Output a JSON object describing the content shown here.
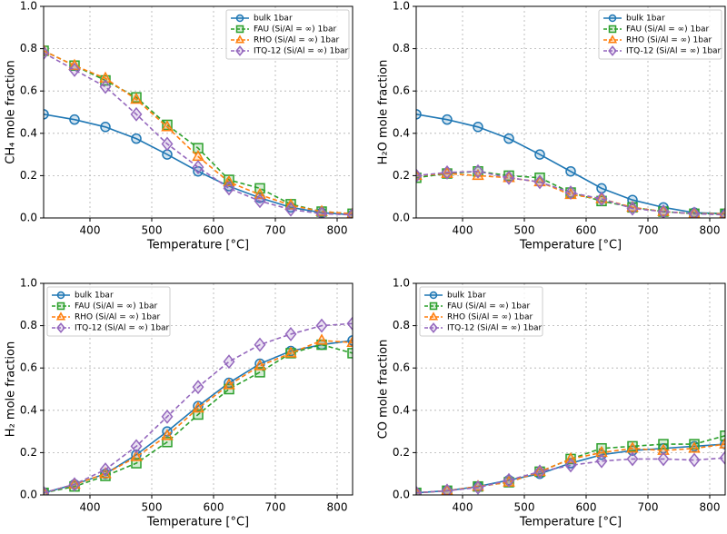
{
  "chart_data": [
    {
      "type": "line",
      "ylabel": "CH₄ mole fraction",
      "xlabel": "Temperature [°C]",
      "x": [
        325,
        375,
        425,
        475,
        525,
        575,
        625,
        675,
        725,
        775,
        825
      ],
      "xlim": [
        325,
        825
      ],
      "xticks": [
        400,
        500,
        600,
        700,
        800
      ],
      "ylim": [
        0,
        1
      ],
      "yticks": [
        {
          "value": 0,
          "label": "0.0"
        },
        0.2,
        0.4,
        0.6,
        0.8,
        {
          "value": 1,
          "label": "1.0"
        }
      ],
      "grid": true,
      "legend_loc": "upper right",
      "series": [
        {
          "name": "bulk 1bar",
          "color": "#1f77b4",
          "marker": "circle",
          "linestyle": "solid",
          "values": [
            0.49,
            0.465,
            0.43,
            0.375,
            0.3,
            0.22,
            0.15,
            0.095,
            0.05,
            0.025,
            0.015
          ]
        },
        {
          "name": "FAU (Si/Al = ∞) 1bar",
          "color": "#2ca02c",
          "marker": "square",
          "linestyle": "dashed",
          "values": [
            0.79,
            0.72,
            0.65,
            0.57,
            0.44,
            0.33,
            0.18,
            0.14,
            0.065,
            0.03,
            0.02
          ]
        },
        {
          "name": "RHO (Si/Al = ∞) 1bar",
          "color": "#ff7f0e",
          "marker": "triangle",
          "linestyle": "dashed",
          "values": [
            0.79,
            0.72,
            0.66,
            0.56,
            0.43,
            0.29,
            0.17,
            0.11,
            0.06,
            0.03,
            0.02
          ]
        },
        {
          "name": "ITQ-12 (Si/Al = ∞) 1bar",
          "color": "#9467bd",
          "marker": "diamond",
          "linestyle": "dashed",
          "values": [
            0.78,
            0.7,
            0.62,
            0.49,
            0.35,
            0.24,
            0.14,
            0.08,
            0.04,
            0.02,
            0.015
          ]
        }
      ]
    },
    {
      "type": "line",
      "ylabel": "H₂O mole fraction",
      "xlabel": "Temperature [°C]",
      "x": [
        325,
        375,
        425,
        475,
        525,
        575,
        625,
        675,
        725,
        775,
        825
      ],
      "xlim": [
        325,
        825
      ],
      "xticks": [
        400,
        500,
        600,
        700,
        800
      ],
      "ylim": [
        0,
        1
      ],
      "yticks": [
        {
          "value": 0,
          "label": "0.0"
        },
        0.2,
        0.4,
        0.6,
        0.8,
        {
          "value": 1,
          "label": "1.0"
        }
      ],
      "grid": true,
      "legend_loc": "upper right",
      "series": [
        {
          "name": "bulk 1bar",
          "color": "#1f77b4",
          "marker": "circle",
          "linestyle": "solid",
          "values": [
            0.49,
            0.465,
            0.43,
            0.375,
            0.3,
            0.22,
            0.14,
            0.085,
            0.05,
            0.025,
            0.02
          ]
        },
        {
          "name": "FAU (Si/Al = ∞) 1bar",
          "color": "#2ca02c",
          "marker": "square",
          "linestyle": "dashed",
          "values": [
            0.19,
            0.21,
            0.22,
            0.2,
            0.19,
            0.12,
            0.08,
            0.05,
            0.03,
            0.02,
            0.02
          ]
        },
        {
          "name": "RHO (Si/Al = ∞) 1bar",
          "color": "#ff7f0e",
          "marker": "triangle",
          "linestyle": "dashed",
          "values": [
            0.2,
            0.21,
            0.2,
            0.19,
            0.17,
            0.11,
            0.09,
            0.05,
            0.03,
            0.02,
            0.02
          ]
        },
        {
          "name": "ITQ-12 (Si/Al = ∞) 1bar",
          "color": "#9467bd",
          "marker": "diamond",
          "linestyle": "dashed",
          "values": [
            0.2,
            0.215,
            0.22,
            0.19,
            0.17,
            0.12,
            0.09,
            0.045,
            0.03,
            0.02,
            0.015
          ]
        }
      ]
    },
    {
      "type": "line",
      "ylabel": "H₂ mole fraction",
      "xlabel": "Temperature [°C]",
      "x": [
        325,
        375,
        425,
        475,
        525,
        575,
        625,
        675,
        725,
        775,
        825
      ],
      "xlim": [
        325,
        825
      ],
      "xticks": [
        400,
        500,
        600,
        700,
        800
      ],
      "ylim": [
        0,
        1
      ],
      "yticks": [
        {
          "value": 0,
          "label": "0.0"
        },
        0.2,
        0.4,
        0.6,
        0.8,
        {
          "value": 1,
          "label": "1.0"
        }
      ],
      "grid": true,
      "legend_loc": "upper left",
      "series": [
        {
          "name": "bulk 1bar",
          "color": "#1f77b4",
          "marker": "circle",
          "linestyle": "solid",
          "values": [
            0.01,
            0.05,
            0.1,
            0.19,
            0.3,
            0.42,
            0.53,
            0.62,
            0.68,
            0.71,
            0.73
          ]
        },
        {
          "name": "FAU (Si/Al = ∞) 1bar",
          "color": "#2ca02c",
          "marker": "square",
          "linestyle": "dashed",
          "values": [
            0.01,
            0.04,
            0.09,
            0.15,
            0.25,
            0.38,
            0.5,
            0.58,
            0.67,
            0.71,
            0.67
          ]
        },
        {
          "name": "RHO (Si/Al = ∞) 1bar",
          "color": "#ff7f0e",
          "marker": "triangle",
          "linestyle": "dashed",
          "values": [
            0.01,
            0.05,
            0.1,
            0.18,
            0.28,
            0.41,
            0.52,
            0.61,
            0.67,
            0.73,
            0.72
          ]
        },
        {
          "name": "ITQ-12 (Si/Al = ∞) 1bar",
          "color": "#9467bd",
          "marker": "diamond",
          "linestyle": "dashed",
          "values": [
            0.01,
            0.05,
            0.12,
            0.23,
            0.37,
            0.51,
            0.63,
            0.71,
            0.76,
            0.8,
            0.81
          ]
        }
      ]
    },
    {
      "type": "line",
      "ylabel": "CO mole fraction",
      "xlabel": "Temperature [°C]",
      "x": [
        325,
        375,
        425,
        475,
        525,
        575,
        625,
        675,
        725,
        775,
        825
      ],
      "xlim": [
        325,
        825
      ],
      "xticks": [
        400,
        500,
        600,
        700,
        800
      ],
      "ylim": [
        0,
        1
      ],
      "yticks": [
        {
          "value": 0,
          "label": "0.0"
        },
        0.2,
        0.4,
        0.6,
        0.8,
        {
          "value": 1,
          "label": "1.0"
        }
      ],
      "grid": true,
      "legend_loc": "upper left",
      "series": [
        {
          "name": "bulk 1bar",
          "color": "#1f77b4",
          "marker": "circle",
          "linestyle": "solid",
          "values": [
            0.01,
            0.02,
            0.04,
            0.07,
            0.1,
            0.15,
            0.19,
            0.21,
            0.22,
            0.23,
            0.24
          ]
        },
        {
          "name": "FAU (Si/Al = ∞) 1bar",
          "color": "#2ca02c",
          "marker": "square",
          "linestyle": "dashed",
          "values": [
            0.01,
            0.02,
            0.04,
            0.06,
            0.11,
            0.17,
            0.22,
            0.23,
            0.24,
            0.24,
            0.28
          ]
        },
        {
          "name": "RHO (Si/Al = ∞) 1bar",
          "color": "#ff7f0e",
          "marker": "triangle",
          "linestyle": "dashed",
          "values": [
            0.01,
            0.02,
            0.04,
            0.06,
            0.11,
            0.17,
            0.2,
            0.22,
            0.21,
            0.22,
            0.24
          ]
        },
        {
          "name": "ITQ-12 (Si/Al = ∞) 1bar",
          "color": "#9467bd",
          "marker": "diamond",
          "linestyle": "dashed",
          "values": [
            0.01,
            0.02,
            0.035,
            0.07,
            0.11,
            0.14,
            0.16,
            0.17,
            0.17,
            0.165,
            0.175
          ]
        }
      ]
    }
  ]
}
